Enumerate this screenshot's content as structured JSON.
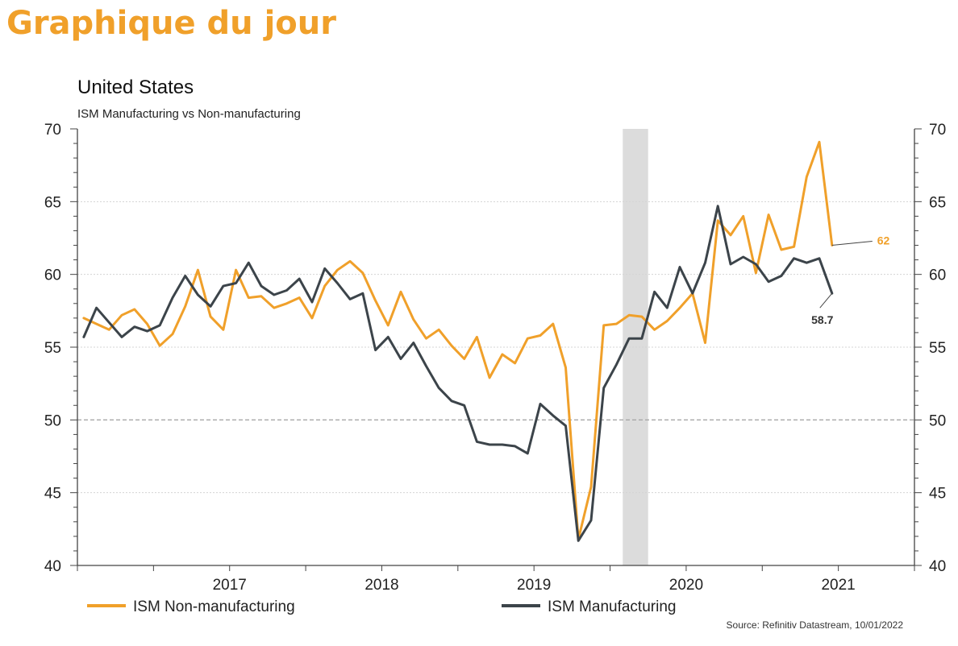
{
  "page": {
    "headline": "Graphique du jour"
  },
  "chart_data": {
    "type": "line",
    "title": "United States",
    "subtitle": "ISM Manufacturing vs Non-manufacturing",
    "source": "Source: Refinitiv Datastream, 10/01/2022",
    "x_start": "2016-07",
    "x_end": "2021-12",
    "x_ticks": [
      "2017",
      "2018",
      "2019",
      "2020",
      "2021"
    ],
    "ylim": [
      40,
      70
    ],
    "y_ticks": [
      "40",
      "45",
      "50",
      "55",
      "60",
      "65",
      "70"
    ],
    "gridlines": true,
    "dashed_reference": 50,
    "shaded_period": [
      "2020-02",
      "2020-04"
    ],
    "series": [
      {
        "name": "ISM Non-manufacturing",
        "color": "#f0a02a",
        "end_label": "62",
        "values": [
          [
            "2016-07",
            57.0
          ],
          [
            "2016-08",
            56.6
          ],
          [
            "2016-09",
            56.2
          ],
          [
            "2016-10",
            57.2
          ],
          [
            "2016-11",
            57.6
          ],
          [
            "2016-12",
            56.6
          ],
          [
            "2017-01",
            55.1
          ],
          [
            "2017-02",
            55.9
          ],
          [
            "2017-03",
            57.8
          ],
          [
            "2017-04",
            60.3
          ],
          [
            "2017-05",
            57.1
          ],
          [
            "2017-06",
            56.2
          ],
          [
            "2017-07",
            60.3
          ],
          [
            "2017-08",
            58.4
          ],
          [
            "2017-09",
            58.5
          ],
          [
            "2017-10",
            57.7
          ],
          [
            "2017-11",
            58.0
          ],
          [
            "2017-12",
            58.4
          ],
          [
            "2018-01",
            57.0
          ],
          [
            "2018-02",
            59.2
          ],
          [
            "2018-03",
            60.3
          ],
          [
            "2018-04",
            60.9
          ],
          [
            "2018-05",
            60.1
          ],
          [
            "2018-06",
            58.2
          ],
          [
            "2018-07",
            56.5
          ],
          [
            "2018-08",
            58.8
          ],
          [
            "2018-09",
            56.9
          ],
          [
            "2018-10",
            55.6
          ],
          [
            "2018-11",
            56.2
          ],
          [
            "2018-12",
            55.1
          ],
          [
            "2019-01",
            54.2
          ],
          [
            "2019-02",
            55.7
          ],
          [
            "2019-03",
            52.9
          ],
          [
            "2019-04",
            54.5
          ],
          [
            "2019-05",
            53.9
          ],
          [
            "2019-06",
            55.6
          ],
          [
            "2019-07",
            55.8
          ],
          [
            "2019-08",
            56.6
          ],
          [
            "2019-09",
            53.6
          ],
          [
            "2019-10",
            41.8
          ],
          [
            "2019-11",
            45.4
          ],
          [
            "2019-12",
            56.5
          ],
          [
            "2020-01",
            56.6
          ],
          [
            "2020-02",
            57.2
          ],
          [
            "2020-03",
            57.1
          ],
          [
            "2020-04",
            56.2
          ],
          [
            "2020-05",
            56.8
          ],
          [
            "2020-06",
            57.7
          ],
          [
            "2020-07",
            58.7
          ],
          [
            "2020-08",
            55.3
          ],
          [
            "2020-09",
            63.7
          ],
          [
            "2020-10",
            62.7
          ],
          [
            "2020-11",
            64.0
          ],
          [
            "2020-12",
            60.1
          ],
          [
            "2021-01",
            64.1
          ],
          [
            "2021-02",
            61.7
          ],
          [
            "2021-03",
            61.9
          ],
          [
            "2021-04",
            66.7
          ],
          [
            "2021-05",
            69.1
          ],
          [
            "2021-06",
            62.0
          ]
        ]
      },
      {
        "name": "ISM Manufacturing",
        "color": "#3c444a",
        "end_label": "58.7",
        "values": [
          [
            "2016-07",
            55.7
          ],
          [
            "2016-08",
            57.7
          ],
          [
            "2016-09",
            56.7
          ],
          [
            "2016-10",
            55.7
          ],
          [
            "2016-11",
            56.4
          ],
          [
            "2016-12",
            56.1
          ],
          [
            "2017-01",
            56.5
          ],
          [
            "2017-02",
            58.4
          ],
          [
            "2017-03",
            59.9
          ],
          [
            "2017-04",
            58.6
          ],
          [
            "2017-05",
            57.8
          ],
          [
            "2017-06",
            59.2
          ],
          [
            "2017-07",
            59.4
          ],
          [
            "2017-08",
            60.8
          ],
          [
            "2017-09",
            59.2
          ],
          [
            "2017-10",
            58.6
          ],
          [
            "2017-11",
            58.9
          ],
          [
            "2017-12",
            59.7
          ],
          [
            "2018-01",
            58.1
          ],
          [
            "2018-02",
            60.4
          ],
          [
            "2018-03",
            59.4
          ],
          [
            "2018-04",
            58.3
          ],
          [
            "2018-05",
            58.7
          ],
          [
            "2018-06",
            54.8
          ],
          [
            "2018-07",
            55.7
          ],
          [
            "2018-08",
            54.2
          ],
          [
            "2018-09",
            55.3
          ],
          [
            "2018-10",
            53.7
          ],
          [
            "2018-11",
            52.2
          ],
          [
            "2018-12",
            51.3
          ],
          [
            "2019-01",
            51.0
          ],
          [
            "2019-02",
            48.5
          ],
          [
            "2019-03",
            48.3
          ],
          [
            "2019-04",
            48.3
          ],
          [
            "2019-05",
            48.2
          ],
          [
            "2019-06",
            47.7
          ],
          [
            "2019-07",
            51.1
          ],
          [
            "2019-08",
            50.3
          ],
          [
            "2019-09",
            49.6
          ],
          [
            "2019-10",
            41.7
          ],
          [
            "2019-11",
            43.1
          ],
          [
            "2019-12",
            52.2
          ],
          [
            "2020-01",
            53.8
          ],
          [
            "2020-02",
            55.6
          ],
          [
            "2020-03",
            55.6
          ],
          [
            "2020-04",
            58.8
          ],
          [
            "2020-05",
            57.7
          ],
          [
            "2020-06",
            60.5
          ],
          [
            "2020-07",
            58.7
          ],
          [
            "2020-08",
            60.8
          ],
          [
            "2020-09",
            64.7
          ],
          [
            "2020-10",
            60.7
          ],
          [
            "2020-11",
            61.2
          ],
          [
            "2020-12",
            60.7
          ],
          [
            "2021-01",
            59.5
          ],
          [
            "2021-02",
            59.9
          ],
          [
            "2021-03",
            61.1
          ],
          [
            "2021-04",
            60.8
          ],
          [
            "2021-05",
            61.1
          ],
          [
            "2021-06",
            58.7
          ]
        ]
      }
    ]
  }
}
